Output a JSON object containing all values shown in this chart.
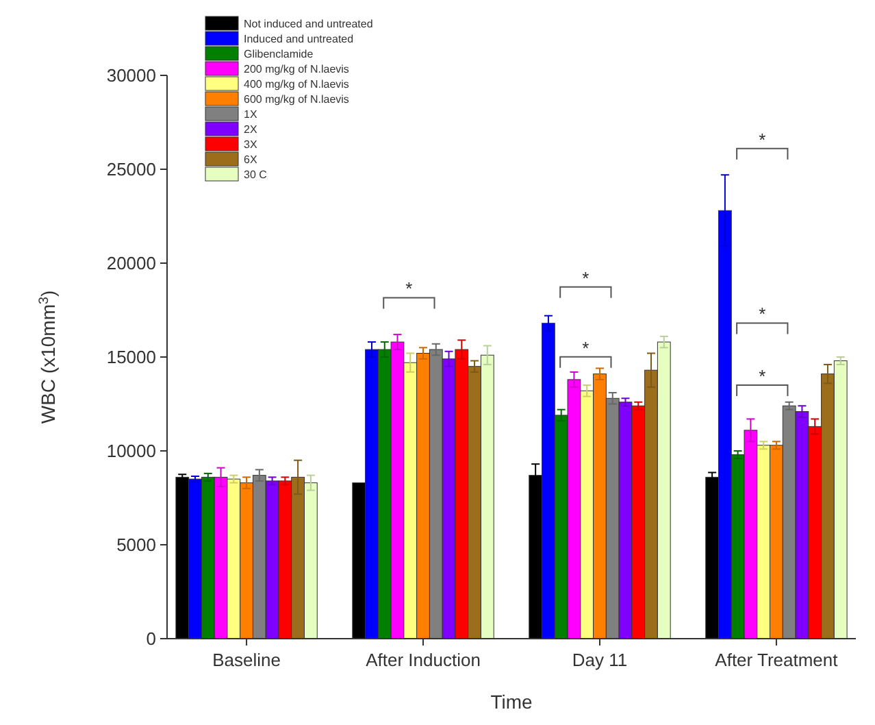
{
  "chart_data": {
    "type": "bar",
    "xlabel": "Time",
    "ylabel": "WBC (x10mm$^{3}$)",
    "categories": [
      "Baseline",
      "After Induction",
      "Day 11",
      "After Treatment"
    ],
    "ylim": [
      0,
      30000
    ],
    "yticks": [
      0,
      5000,
      10000,
      15000,
      20000,
      25000,
      30000
    ],
    "legend": "top left",
    "grid": false,
    "series": [
      {
        "name": "Not induced and untreated",
        "color": "#000000",
        "values": [
          8600,
          8300,
          8700,
          8600
        ],
        "errors": [
          150,
          null,
          600,
          250
        ]
      },
      {
        "name": "Induced and untreated",
        "color": "#0000ff",
        "values": [
          8500,
          15400,
          16800,
          22800
        ],
        "errors": [
          150,
          400,
          400,
          1900
        ]
      },
      {
        "name": "Glibenclamide",
        "color": "#007f00",
        "values": [
          8600,
          15400,
          11900,
          9800
        ],
        "errors": [
          200,
          400,
          300,
          200
        ]
      },
      {
        "name": "200 mg/kg of N.laevis",
        "color": "#ff00ff",
        "values": [
          8600,
          15800,
          13800,
          11100
        ],
        "errors": [
          500,
          400,
          400,
          600
        ]
      },
      {
        "name": "400 mg/kg of N.laevis",
        "color": "#ffff80",
        "values": [
          8500,
          14700,
          13200,
          10300
        ],
        "errors": [
          200,
          500,
          300,
          200
        ]
      },
      {
        "name": "600 mg/kg of N.laevis",
        "color": "#ff8000",
        "values": [
          8300,
          15200,
          14100,
          10300
        ],
        "errors": [
          300,
          300,
          300,
          200
        ]
      },
      {
        "name": "1X",
        "color": "#808080",
        "values": [
          8700,
          15400,
          12800,
          12400
        ],
        "errors": [
          300,
          300,
          300,
          200
        ]
      },
      {
        "name": "2X",
        "color": "#8000ff",
        "values": [
          8400,
          14900,
          12600,
          12100
        ],
        "errors": [
          200,
          400,
          200,
          300
        ]
      },
      {
        "name": "3X",
        "color": "#ff0000",
        "values": [
          8400,
          15400,
          12400,
          11300
        ],
        "errors": [
          200,
          500,
          200,
          400
        ]
      },
      {
        "name": "6X",
        "color": "#9c6e1c",
        "values": [
          8600,
          14500,
          14300,
          14100
        ],
        "errors": [
          900,
          300,
          900,
          500
        ]
      },
      {
        "name": "30 C",
        "color": "#e6ffc0",
        "values": [
          8300,
          15100,
          15800,
          14800
        ],
        "errors": [
          400,
          500,
          300,
          200
        ]
      }
    ],
    "annotations": [
      "*",
      "*",
      "*",
      "*",
      "*",
      "*"
    ]
  }
}
